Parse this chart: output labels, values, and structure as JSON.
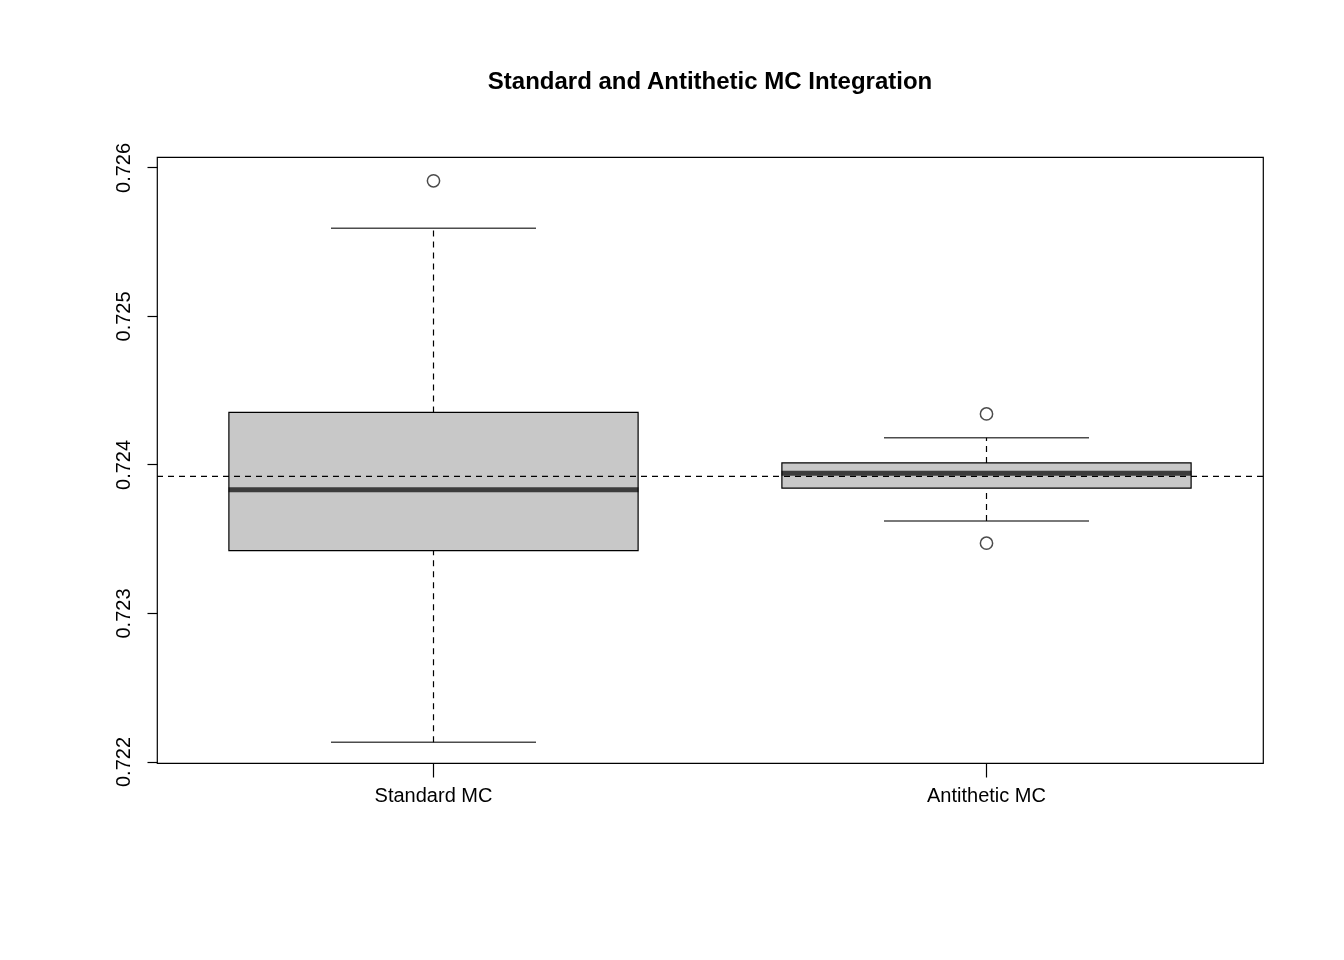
{
  "chart_data": {
    "type": "box",
    "title": "Standard and Antithetic MC Integration",
    "categories": [
      "Standard MC",
      "Antithetic MC"
    ],
    "boxes": [
      {
        "low": 0.72213,
        "q1": 0.72342,
        "median": 0.72383,
        "q3": 0.72435,
        "high": 0.72559,
        "outliers": [
          0.72591
        ]
      },
      {
        "low": 0.72362,
        "q1": 0.72384,
        "median": 0.72394,
        "q3": 0.72401,
        "high": 0.72418,
        "outliers": [
          0.72434,
          0.72347
        ]
      }
    ],
    "color": "#c8c8c8",
    "marker": "circle",
    "ylim": [
      0.72199,
      0.72607
    ],
    "yticks": [
      0.722,
      0.723,
      0.724,
      0.725,
      0.726
    ],
    "ref_lines": [
      {
        "axis": "y",
        "value": 0.72392,
        "line_style": "dashed"
      }
    ]
  }
}
